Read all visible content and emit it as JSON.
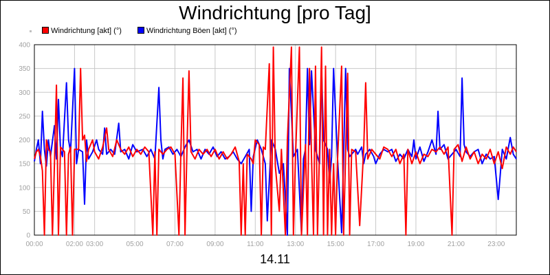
{
  "chart_data": {
    "type": "line",
    "title": "Windrichtung [pro Tag]",
    "xlabel": "14.11",
    "ylabel": "",
    "ylim": [
      0,
      400
    ],
    "yticks": [
      0,
      50,
      100,
      150,
      200,
      250,
      300,
      350,
      400
    ],
    "xlim": [
      0,
      24
    ],
    "xticks": [
      {
        "v": 0,
        "label": "00:00"
      },
      {
        "v": 2,
        "label": "02:00"
      },
      {
        "v": 3,
        "label": "03:00"
      },
      {
        "v": 5,
        "label": "05:00"
      },
      {
        "v": 7,
        "label": "07:00"
      },
      {
        "v": 9,
        "label": "09:00"
      },
      {
        "v": 11,
        "label": "11:00"
      },
      {
        "v": 13,
        "label": "13:00"
      },
      {
        "v": 15,
        "label": "15:00"
      },
      {
        "v": 17,
        "label": "17:00"
      },
      {
        "v": 19,
        "label": "19:00"
      },
      {
        "v": 21,
        "label": "21:00"
      },
      {
        "v": 23,
        "label": "23:00"
      }
    ],
    "grid": true,
    "legend_position": "top-left",
    "series": [
      {
        "name": "Windrichtung Böen [akt] (°)",
        "color": "#0000ff",
        "points": [
          [
            0,
            155
          ],
          [
            0.1,
            180
          ],
          [
            0.2,
            200
          ],
          [
            0.3,
            150
          ],
          [
            0.4,
            260
          ],
          [
            0.5,
            180
          ],
          [
            0.6,
            145
          ],
          [
            0.7,
            200
          ],
          [
            0.8,
            165
          ],
          [
            1.0,
            230
          ],
          [
            1.1,
            160
          ],
          [
            1.2,
            285
          ],
          [
            1.3,
            180
          ],
          [
            1.4,
            165
          ],
          [
            1.6,
            320
          ],
          [
            1.7,
            200
          ],
          [
            1.8,
            175
          ],
          [
            2.0,
            350
          ],
          [
            2.1,
            150
          ],
          [
            2.2,
            180
          ],
          [
            2.4,
            175
          ],
          [
            2.5,
            65
          ],
          [
            2.6,
            200
          ],
          [
            2.7,
            160
          ],
          [
            2.9,
            175
          ],
          [
            3.1,
            200
          ],
          [
            3.2,
            180
          ],
          [
            3.4,
            170
          ],
          [
            3.5,
            225
          ],
          [
            3.6,
            170
          ],
          [
            3.8,
            180
          ],
          [
            4.0,
            170
          ],
          [
            4.2,
            235
          ],
          [
            4.3,
            175
          ],
          [
            4.5,
            180
          ],
          [
            4.7,
            160
          ],
          [
            4.9,
            190
          ],
          [
            5.1,
            175
          ],
          [
            5.4,
            180
          ],
          [
            5.6,
            165
          ],
          [
            5.8,
            180
          ],
          [
            6.0,
            160
          ],
          [
            6.2,
            310
          ],
          [
            6.3,
            200
          ],
          [
            6.4,
            160
          ],
          [
            6.5,
            180
          ],
          [
            6.7,
            185
          ],
          [
            6.9,
            170
          ],
          [
            7.1,
            180
          ],
          [
            7.3,
            165
          ],
          [
            7.5,
            185
          ],
          [
            7.7,
            200
          ],
          [
            7.9,
            175
          ],
          [
            8.1,
            180
          ],
          [
            8.3,
            160
          ],
          [
            8.5,
            180
          ],
          [
            8.7,
            170
          ],
          [
            8.9,
            185
          ],
          [
            9.1,
            165
          ],
          [
            9.3,
            175
          ],
          [
            9.5,
            160
          ],
          [
            9.7,
            165
          ],
          [
            9.9,
            175
          ],
          [
            10.1,
            160
          ],
          [
            10.3,
            150
          ],
          [
            10.5,
            165
          ],
          [
            10.7,
            180
          ],
          [
            10.8,
            50
          ],
          [
            10.9,
            165
          ],
          [
            11.1,
            200
          ],
          [
            11.3,
            180
          ],
          [
            11.5,
            150
          ],
          [
            11.6,
            30
          ],
          [
            11.8,
            200
          ],
          [
            12.0,
            180
          ],
          [
            12.2,
            130
          ],
          [
            12.4,
            150
          ],
          [
            12.6,
            0
          ],
          [
            12.7,
            350
          ],
          [
            12.9,
            165
          ],
          [
            13.1,
            180
          ],
          [
            13.3,
            5
          ],
          [
            13.4,
            160
          ],
          [
            13.5,
            180
          ],
          [
            13.6,
            350
          ],
          [
            13.7,
            190
          ],
          [
            13.8,
            345
          ],
          [
            14.0,
            180
          ],
          [
            14.2,
            150
          ],
          [
            14.3,
            350
          ],
          [
            14.4,
            200
          ],
          [
            14.6,
            180
          ],
          [
            14.7,
            110
          ],
          [
            14.8,
            165
          ],
          [
            14.9,
            350
          ],
          [
            15.1,
            160
          ],
          [
            15.3,
            5
          ],
          [
            15.4,
            165
          ],
          [
            15.5,
            350
          ],
          [
            15.6,
            180
          ],
          [
            15.7,
            165
          ],
          [
            15.8,
            170
          ],
          [
            16.0,
            180
          ],
          [
            16.1,
            170
          ],
          [
            16.3,
            185
          ],
          [
            16.4,
            150
          ],
          [
            16.5,
            170
          ],
          [
            16.7,
            180
          ],
          [
            16.9,
            165
          ],
          [
            17.0,
            150
          ],
          [
            17.2,
            170
          ],
          [
            17.4,
            180
          ],
          [
            17.6,
            175
          ],
          [
            17.8,
            180
          ],
          [
            18.0,
            155
          ],
          [
            18.2,
            170
          ],
          [
            18.4,
            160
          ],
          [
            18.6,
            180
          ],
          [
            18.8,
            165
          ],
          [
            18.9,
            200
          ],
          [
            19.0,
            160
          ],
          [
            19.2,
            185
          ],
          [
            19.4,
            155
          ],
          [
            19.6,
            175
          ],
          [
            19.8,
            200
          ],
          [
            20.0,
            170
          ],
          [
            20.1,
            260
          ],
          [
            20.2,
            180
          ],
          [
            20.4,
            190
          ],
          [
            20.6,
            160
          ],
          [
            20.8,
            170
          ],
          [
            21.0,
            180
          ],
          [
            21.2,
            165
          ],
          [
            21.3,
            330
          ],
          [
            21.4,
            190
          ],
          [
            21.5,
            175
          ],
          [
            21.7,
            165
          ],
          [
            21.9,
            175
          ],
          [
            22.1,
            180
          ],
          [
            22.3,
            150
          ],
          [
            22.5,
            170
          ],
          [
            22.7,
            160
          ],
          [
            22.9,
            165
          ],
          [
            23.1,
            75
          ],
          [
            23.3,
            180
          ],
          [
            23.5,
            160
          ],
          [
            23.7,
            205
          ],
          [
            23.85,
            170
          ],
          [
            24.0,
            160
          ]
        ]
      },
      {
        "name": "Windrichtung [akt] (°)",
        "color": "#ff0000",
        "points": [
          [
            0,
            160
          ],
          [
            0.1,
            175
          ],
          [
            0.2,
            180
          ],
          [
            0.3,
            165
          ],
          [
            0.4,
            135
          ],
          [
            0.5,
            0
          ],
          [
            0.6,
            200
          ],
          [
            0.7,
            180
          ],
          [
            0.8,
            175
          ],
          [
            0.9,
            0
          ],
          [
            1.0,
            150
          ],
          [
            1.1,
            315
          ],
          [
            1.2,
            0
          ],
          [
            1.3,
            185
          ],
          [
            1.5,
            175
          ],
          [
            1.6,
            0
          ],
          [
            1.7,
            170
          ],
          [
            1.8,
            185
          ],
          [
            1.9,
            0
          ],
          [
            2.0,
            180
          ],
          [
            2.1,
            180
          ],
          [
            2.2,
            180
          ],
          [
            2.3,
            350
          ],
          [
            2.4,
            200
          ],
          [
            2.5,
            210
          ],
          [
            2.6,
            155
          ],
          [
            2.7,
            180
          ],
          [
            2.9,
            200
          ],
          [
            3.0,
            175
          ],
          [
            3.2,
            160
          ],
          [
            3.4,
            185
          ],
          [
            3.6,
            225
          ],
          [
            3.7,
            180
          ],
          [
            3.9,
            165
          ],
          [
            4.1,
            200
          ],
          [
            4.3,
            180
          ],
          [
            4.5,
            170
          ],
          [
            4.7,
            185
          ],
          [
            4.9,
            165
          ],
          [
            5.1,
            180
          ],
          [
            5.3,
            170
          ],
          [
            5.5,
            185
          ],
          [
            5.7,
            175
          ],
          [
            5.9,
            0
          ],
          [
            6.0,
            175
          ],
          [
            6.1,
            0
          ],
          [
            6.2,
            180
          ],
          [
            6.4,
            170
          ],
          [
            6.6,
            180
          ],
          [
            6.8,
            185
          ],
          [
            7.0,
            170
          ],
          [
            7.2,
            0
          ],
          [
            7.3,
            180
          ],
          [
            7.4,
            330
          ],
          [
            7.5,
            0
          ],
          [
            7.6,
            185
          ],
          [
            7.7,
            345
          ],
          [
            7.8,
            175
          ],
          [
            8.0,
            160
          ],
          [
            8.2,
            180
          ],
          [
            8.4,
            170
          ],
          [
            8.6,
            180
          ],
          [
            8.8,
            165
          ],
          [
            9.0,
            180
          ],
          [
            9.2,
            160
          ],
          [
            9.4,
            175
          ],
          [
            9.6,
            160
          ],
          [
            9.8,
            170
          ],
          [
            10.0,
            185
          ],
          [
            10.2,
            155
          ],
          [
            10.3,
            0
          ],
          [
            10.4,
            150
          ],
          [
            10.5,
            0
          ],
          [
            10.6,
            170
          ],
          [
            10.8,
            160
          ],
          [
            10.9,
            150
          ],
          [
            11.0,
            200
          ],
          [
            11.2,
            190
          ],
          [
            11.3,
            0
          ],
          [
            11.4,
            185
          ],
          [
            11.5,
            180
          ],
          [
            11.7,
            360
          ],
          [
            11.8,
            0
          ],
          [
            11.9,
            395
          ],
          [
            12.0,
            145
          ],
          [
            12.2,
            50
          ],
          [
            12.3,
            180
          ],
          [
            12.5,
            0
          ],
          [
            12.6,
            200
          ],
          [
            12.8,
            395
          ],
          [
            12.9,
            0
          ],
          [
            13.0,
            160
          ],
          [
            13.2,
            395
          ],
          [
            13.3,
            0
          ],
          [
            13.5,
            190
          ],
          [
            13.6,
            0
          ],
          [
            13.7,
            350
          ],
          [
            13.8,
            165
          ],
          [
            13.9,
            0
          ],
          [
            14.0,
            355
          ],
          [
            14.1,
            0
          ],
          [
            14.2,
            180
          ],
          [
            14.3,
            395
          ],
          [
            14.4,
            0
          ],
          [
            14.5,
            355
          ],
          [
            14.6,
            0
          ],
          [
            14.7,
            180
          ],
          [
            14.8,
            0
          ],
          [
            14.9,
            150
          ],
          [
            15.0,
            0
          ],
          [
            15.1,
            160
          ],
          [
            15.3,
            355
          ],
          [
            15.4,
            0
          ],
          [
            15.5,
            170
          ],
          [
            15.6,
            340
          ],
          [
            15.7,
            0
          ],
          [
            15.8,
            180
          ],
          [
            16.0,
            175
          ],
          [
            16.2,
            20
          ],
          [
            16.4,
            180
          ],
          [
            16.5,
            320
          ],
          [
            16.6,
            160
          ],
          [
            16.8,
            180
          ],
          [
            17.0,
            170
          ],
          [
            17.2,
            160
          ],
          [
            17.4,
            185
          ],
          [
            17.6,
            180
          ],
          [
            17.8,
            165
          ],
          [
            18.0,
            180
          ],
          [
            18.2,
            150
          ],
          [
            18.4,
            170
          ],
          [
            18.5,
            0
          ],
          [
            18.6,
            180
          ],
          [
            18.8,
            150
          ],
          [
            19.0,
            175
          ],
          [
            19.2,
            150
          ],
          [
            19.4,
            170
          ],
          [
            19.6,
            165
          ],
          [
            19.8,
            180
          ],
          [
            20.0,
            175
          ],
          [
            20.2,
            185
          ],
          [
            20.4,
            170
          ],
          [
            20.6,
            185
          ],
          [
            20.8,
            0
          ],
          [
            20.9,
            180
          ],
          [
            21.1,
            190
          ],
          [
            21.3,
            155
          ],
          [
            21.5,
            185
          ],
          [
            21.7,
            160
          ],
          [
            21.9,
            175
          ],
          [
            22.1,
            150
          ],
          [
            22.3,
            170
          ],
          [
            22.5,
            160
          ],
          [
            22.7,
            180
          ],
          [
            22.9,
            150
          ],
          [
            23.1,
            175
          ],
          [
            23.3,
            140
          ],
          [
            23.5,
            185
          ],
          [
            23.7,
            170
          ],
          [
            23.85,
            185
          ],
          [
            24.0,
            175
          ]
        ]
      }
    ]
  }
}
